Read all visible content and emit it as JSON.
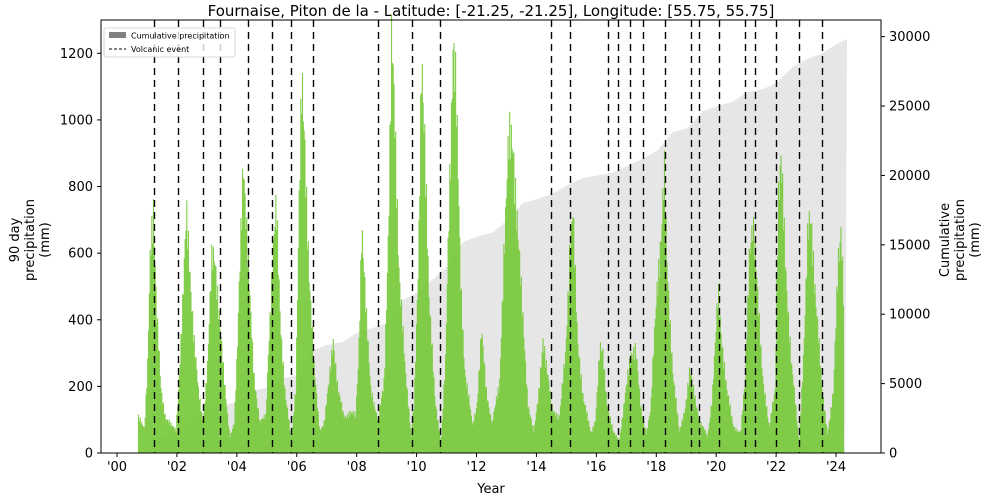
{
  "chart_data": {
    "type": "bar",
    "title": "Fournaise, Piton de la - Latitude: [-21.25, -21.25], Longitude: [55.75, 55.75]",
    "xlabel": "Year",
    "ylabel_left": "90 day\nprecipitation\n(mm)",
    "ylabel_right": "Cumulative\nprecipitation\n(mm)",
    "x_ticks": [
      "'00",
      "'02",
      "'04",
      "'06",
      "'08",
      "'10",
      "'12",
      "'14",
      "'16",
      "'18",
      "'20",
      "'22",
      "'24"
    ],
    "x_tick_years": [
      2000,
      2002,
      2004,
      2006,
      2008,
      2010,
      2012,
      2014,
      2016,
      2018,
      2020,
      2022,
      2024
    ],
    "xlim": [
      1999.5,
      2025.5
    ],
    "ylim_left": [
      0,
      1300
    ],
    "yticks_left": [
      0,
      200,
      400,
      600,
      800,
      1000,
      1200
    ],
    "ylim_right": [
      0,
      31200
    ],
    "yticks_right": [
      0,
      5000,
      10000,
      15000,
      20000,
      25000,
      30000
    ],
    "grid": false,
    "legend": {
      "position": "upper left",
      "entries": [
        {
          "label": "Cumulative precipitation",
          "style": "gray-patch"
        },
        {
          "label": "Volcanic event",
          "style": "dashed-line"
        }
      ]
    },
    "series": [
      {
        "name": "90 day precipitation",
        "axis": "left",
        "color": "#77c93a",
        "type": "bar",
        "points": [
          [
            2000.7,
            115
          ],
          [
            2000.9,
            70
          ],
          [
            2001.0,
            240
          ],
          [
            2001.1,
            650
          ],
          [
            2001.2,
            745
          ],
          [
            2001.3,
            420
          ],
          [
            2001.45,
            190
          ],
          [
            2001.6,
            110
          ],
          [
            2001.8,
            80
          ],
          [
            2001.95,
            70
          ],
          [
            2002.05,
            220
          ],
          [
            2002.2,
            480
          ],
          [
            2002.3,
            710
          ],
          [
            2002.4,
            590
          ],
          [
            2002.55,
            340
          ],
          [
            2002.7,
            180
          ],
          [
            2002.85,
            100
          ],
          [
            2003.0,
            250
          ],
          [
            2003.15,
            570
          ],
          [
            2003.25,
            600
          ],
          [
            2003.4,
            410
          ],
          [
            2003.55,
            220
          ],
          [
            2003.75,
            50
          ],
          [
            2003.9,
            90
          ],
          [
            2004.0,
            300
          ],
          [
            2004.15,
            780
          ],
          [
            2004.2,
            910
          ],
          [
            2004.35,
            560
          ],
          [
            2004.55,
            240
          ],
          [
            2004.75,
            90
          ],
          [
            2004.95,
            110
          ],
          [
            2005.05,
            350
          ],
          [
            2005.2,
            600
          ],
          [
            2005.3,
            720
          ],
          [
            2005.45,
            380
          ],
          [
            2005.6,
            170
          ],
          [
            2005.8,
            40
          ],
          [
            2005.95,
            200
          ],
          [
            2006.05,
            700
          ],
          [
            2006.15,
            1065
          ],
          [
            2006.25,
            930
          ],
          [
            2006.4,
            540
          ],
          [
            2006.55,
            260
          ],
          [
            2006.75,
            70
          ],
          [
            2006.9,
            90
          ],
          [
            2007.05,
            200
          ],
          [
            2007.2,
            350
          ],
          [
            2007.35,
            190
          ],
          [
            2007.55,
            110
          ],
          [
            2007.75,
            120
          ],
          [
            2007.95,
            110
          ],
          [
            2008.05,
            300
          ],
          [
            2008.15,
            690
          ],
          [
            2008.3,
            400
          ],
          [
            2008.45,
            200
          ],
          [
            2008.7,
            90
          ],
          [
            2008.9,
            220
          ],
          [
            2009.05,
            700
          ],
          [
            2009.15,
            1210
          ],
          [
            2009.25,
            1000
          ],
          [
            2009.4,
            560
          ],
          [
            2009.6,
            240
          ],
          [
            2009.8,
            60
          ],
          [
            2009.9,
            150
          ],
          [
            2010.05,
            560
          ],
          [
            2010.15,
            1190
          ],
          [
            2010.25,
            1000
          ],
          [
            2010.4,
            440
          ],
          [
            2010.6,
            160
          ],
          [
            2010.8,
            30
          ],
          [
            2010.95,
            270
          ],
          [
            2011.05,
            700
          ],
          [
            2011.2,
            1240
          ],
          [
            2011.3,
            1050
          ],
          [
            2011.45,
            520
          ],
          [
            2011.6,
            240
          ],
          [
            2011.85,
            80
          ],
          [
            2012.0,
            150
          ],
          [
            2012.15,
            360
          ],
          [
            2012.3,
            190
          ],
          [
            2012.5,
            90
          ],
          [
            2012.75,
            200
          ],
          [
            2012.9,
            620
          ],
          [
            2013.05,
            900
          ],
          [
            2013.2,
            930
          ],
          [
            2013.35,
            700
          ],
          [
            2013.5,
            430
          ],
          [
            2013.7,
            150
          ],
          [
            2013.9,
            60
          ],
          [
            2014.05,
            170
          ],
          [
            2014.2,
            350
          ],
          [
            2014.3,
            260
          ],
          [
            2014.5,
            140
          ],
          [
            2014.75,
            100
          ],
          [
            2014.95,
            300
          ],
          [
            2015.1,
            620
          ],
          [
            2015.2,
            700
          ],
          [
            2015.35,
            350
          ],
          [
            2015.55,
            160
          ],
          [
            2015.8,
            60
          ],
          [
            2015.95,
            100
          ],
          [
            2016.1,
            300
          ],
          [
            2016.2,
            300
          ],
          [
            2016.35,
            140
          ],
          [
            2016.55,
            60
          ],
          [
            2016.75,
            40
          ],
          [
            2016.95,
            170
          ],
          [
            2017.15,
            310
          ],
          [
            2017.3,
            310
          ],
          [
            2017.45,
            140
          ],
          [
            2017.65,
            60
          ],
          [
            2017.8,
            130
          ],
          [
            2018.0,
            500
          ],
          [
            2018.15,
            660
          ],
          [
            2018.25,
            820
          ],
          [
            2018.35,
            540
          ],
          [
            2018.55,
            230
          ],
          [
            2018.75,
            60
          ],
          [
            2018.95,
            140
          ],
          [
            2019.1,
            240
          ],
          [
            2019.25,
            180
          ],
          [
            2019.45,
            90
          ],
          [
            2019.7,
            50
          ],
          [
            2019.85,
            170
          ],
          [
            2020.05,
            470
          ],
          [
            2020.15,
            360
          ],
          [
            2020.35,
            180
          ],
          [
            2020.55,
            80
          ],
          [
            2020.8,
            60
          ],
          [
            2020.95,
            220
          ],
          [
            2021.1,
            640
          ],
          [
            2021.2,
            680
          ],
          [
            2021.35,
            490
          ],
          [
            2021.55,
            220
          ],
          [
            2021.75,
            70
          ],
          [
            2021.95,
            200
          ],
          [
            2022.05,
            750
          ],
          [
            2022.15,
            850
          ],
          [
            2022.3,
            560
          ],
          [
            2022.5,
            260
          ],
          [
            2022.75,
            30
          ],
          [
            2022.9,
            300
          ],
          [
            2023.05,
            650
          ],
          [
            2023.15,
            700
          ],
          [
            2023.3,
            480
          ],
          [
            2023.5,
            200
          ],
          [
            2023.7,
            60
          ],
          [
            2023.9,
            180
          ],
          [
            2024.05,
            580
          ],
          [
            2024.15,
            700
          ],
          [
            2024.25,
            420
          ]
        ]
      },
      {
        "name": "Cumulative precipitation",
        "axis": "right",
        "color": "#e6e6e6",
        "type": "area",
        "points": [
          [
            2000.7,
            0
          ],
          [
            2001.0,
            300
          ],
          [
            2001.5,
            1200
          ],
          [
            2002.0,
            1500
          ],
          [
            2002.5,
            2500
          ],
          [
            2003.0,
            3000
          ],
          [
            2003.5,
            3500
          ],
          [
            2004.0,
            3650
          ],
          [
            2004.5,
            4500
          ],
          [
            2005.0,
            4700
          ],
          [
            2005.5,
            5400
          ],
          [
            2006.0,
            5600
          ],
          [
            2006.5,
            7400
          ],
          [
            2007.0,
            7800
          ],
          [
            2007.5,
            8000
          ],
          [
            2008.0,
            8700
          ],
          [
            2008.5,
            9000
          ],
          [
            2009.0,
            9400
          ],
          [
            2009.5,
            11000
          ],
          [
            2010.0,
            11600
          ],
          [
            2010.5,
            12500
          ],
          [
            2011.0,
            13500
          ],
          [
            2011.5,
            15200
          ],
          [
            2012.0,
            15600
          ],
          [
            2012.5,
            15900
          ],
          [
            2013.0,
            16800
          ],
          [
            2013.5,
            18000
          ],
          [
            2014.0,
            18300
          ],
          [
            2014.5,
            18700
          ],
          [
            2015.0,
            19300
          ],
          [
            2015.5,
            19800
          ],
          [
            2016.0,
            20000
          ],
          [
            2016.5,
            20200
          ],
          [
            2017.0,
            20700
          ],
          [
            2017.5,
            21200
          ],
          [
            2018.0,
            21800
          ],
          [
            2018.5,
            23100
          ],
          [
            2019.0,
            23400
          ],
          [
            2019.5,
            24600
          ],
          [
            2020.0,
            25000
          ],
          [
            2020.5,
            25300
          ],
          [
            2021.0,
            26000
          ],
          [
            2021.5,
            26200
          ],
          [
            2022.0,
            26700
          ],
          [
            2022.5,
            27800
          ],
          [
            2023.0,
            28400
          ],
          [
            2023.5,
            28800
          ],
          [
            2024.0,
            29500
          ],
          [
            2024.3,
            29800
          ]
        ]
      }
    ],
    "volcanic_events": [
      2001.24,
      2002.04,
      2002.87,
      2003.44,
      2004.37,
      2005.17,
      2005.81,
      2006.55,
      2008.72,
      2009.85,
      2010.78,
      2014.48,
      2015.12,
      2016.39,
      2016.72,
      2017.12,
      2017.56,
      2018.29,
      2019.16,
      2019.43,
      2020.09,
      2020.96,
      2021.29,
      2021.99,
      2022.76,
      2023.53
    ]
  },
  "colors": {
    "rain": "#77c93a",
    "rain_overlay": "#83d049",
    "cumulative": "#e6e6e6",
    "event_line": "#000000"
  }
}
